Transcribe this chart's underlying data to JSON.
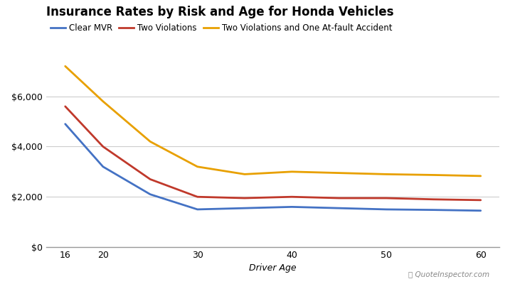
{
  "title": "Insurance Rates by Risk and Age for Honda Vehicles",
  "xlabel": "Driver Age",
  "ages": [
    16,
    20,
    25,
    30,
    35,
    40,
    45,
    50,
    55,
    60
  ],
  "series": [
    {
      "label": "Clear MVR",
      "color": "#4472C4",
      "values": [
        4900,
        3200,
        2100,
        1500,
        1550,
        1600,
        1550,
        1500,
        1480,
        1450
      ]
    },
    {
      "label": "Two Violations",
      "color": "#C0392B",
      "values": [
        5600,
        4000,
        2700,
        2000,
        1950,
        2000,
        1950,
        1950,
        1900,
        1870
      ]
    },
    {
      "label": "Two Violations and One At-fault Accident",
      "color": "#E8A000",
      "values": [
        7200,
        5800,
        4200,
        3200,
        2900,
        3000,
        2950,
        2900,
        2870,
        2830
      ]
    }
  ],
  "ylim": [
    0,
    7800
  ],
  "yticks": [
    0,
    2000,
    4000,
    6000
  ],
  "xticks": [
    16,
    20,
    25,
    30,
    35,
    40,
    45,
    50,
    55,
    60
  ],
  "xtick_labels": [
    "16",
    "20",
    "",
    "30",
    "",
    "40",
    "",
    "50",
    "",
    "60"
  ],
  "background_color": "#ffffff",
  "grid_color": "#cccccc",
  "line_width": 2.0,
  "title_fontsize": 12,
  "label_fontsize": 9,
  "tick_fontsize": 9,
  "legend_fontsize": 8.5
}
